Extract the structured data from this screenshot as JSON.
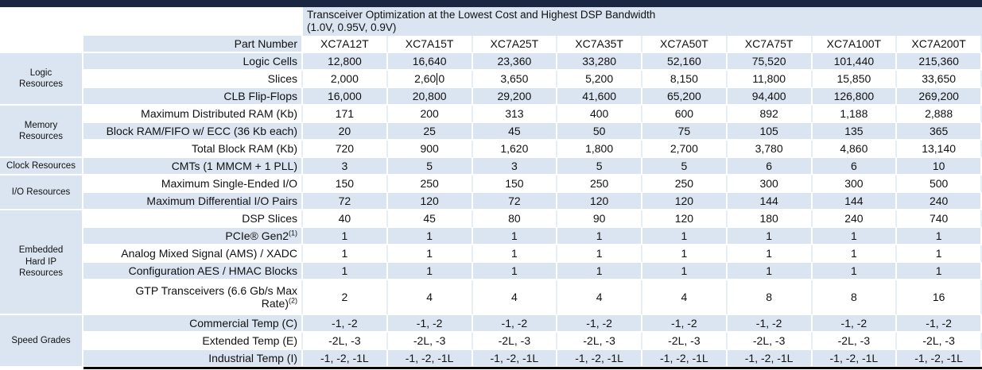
{
  "colors": {
    "top_bar": "#1b2642",
    "row_blue": "#dbe5f1",
    "white_row_divider": "#e7edf5",
    "bottom_rule": "#000000"
  },
  "title": {
    "line1": "Transceiver Optimization at the Lowest Cost and Highest DSP Bandwidth",
    "line2": "(1.0V, 0.95V, 0.9V)"
  },
  "table": {
    "header": {
      "label": "Part Number",
      "parts": [
        "XC7A12T",
        "XC7A15T",
        "XC7A25T",
        "XC7A35T",
        "XC7A50T",
        "XC7A75T",
        "XC7A100T",
        "XC7A200T"
      ]
    },
    "groups": [
      {
        "label": "Logic Resources",
        "lines": [
          "Logic",
          "Resources"
        ],
        "rows": [
          {
            "label": "Logic Cells",
            "sup": "",
            "shade": "blue",
            "values": [
              "12,800",
              "16,640",
              "23,360",
              "33,280",
              "52,160",
              "75,520",
              "101,440",
              "215,360"
            ]
          },
          {
            "label": "Slices",
            "sup": "",
            "shade": "white",
            "values": [
              "2,000",
              "2,600",
              "3,650",
              "5,200",
              "8,150",
              "11,800",
              "15,850",
              "33,650"
            ],
            "caret": {
              "col": 1,
              "before": "2,60",
              "after": "0"
            }
          },
          {
            "label": "CLB Flip-Flops",
            "sup": "",
            "shade": "blue",
            "values": [
              "16,000",
              "20,800",
              "29,200",
              "41,600",
              "65,200",
              "94,400",
              "126,800",
              "269,200"
            ]
          }
        ]
      },
      {
        "label": "Memory Resources",
        "lines": [
          "Memory",
          "Resources"
        ],
        "rows": [
          {
            "label": "Maximum Distributed RAM (Kb)",
            "sup": "",
            "shade": "white",
            "values": [
              "171",
              "200",
              "313",
              "400",
              "600",
              "892",
              "1,188",
              "2,888"
            ]
          },
          {
            "label": "Block RAM/FIFO w/ ECC (36 Kb each)",
            "sup": "",
            "shade": "blue",
            "values": [
              "20",
              "25",
              "45",
              "50",
              "75",
              "105",
              "135",
              "365"
            ]
          },
          {
            "label": "Total Block RAM (Kb)",
            "sup": "",
            "shade": "white",
            "values": [
              "720",
              "900",
              "1,620",
              "1,800",
              "2,700",
              "3,780",
              "4,860",
              "13,140"
            ]
          }
        ]
      },
      {
        "label": "Clock Resources",
        "lines": [
          "Clock Resources"
        ],
        "rows": [
          {
            "label": "CMTs (1 MMCM + 1 PLL)",
            "sup": "",
            "shade": "blue",
            "values": [
              "3",
              "5",
              "3",
              "5",
              "5",
              "6",
              "6",
              "10"
            ]
          }
        ]
      },
      {
        "label": "I/O Resources",
        "lines": [
          "I/O Resources"
        ],
        "rows": [
          {
            "label": "Maximum Single-Ended I/O",
            "sup": "",
            "shade": "white",
            "values": [
              "150",
              "250",
              "150",
              "250",
              "250",
              "300",
              "300",
              "500"
            ]
          },
          {
            "label": "Maximum Differential I/O Pairs",
            "sup": "",
            "shade": "blue",
            "values": [
              "72",
              "120",
              "72",
              "120",
              "120",
              "144",
              "144",
              "240"
            ]
          }
        ]
      },
      {
        "label": "Embedded Hard IP Resources",
        "lines": [
          "Embedded",
          "Hard IP",
          "Resources"
        ],
        "rows": [
          {
            "label": "DSP Slices",
            "sup": "",
            "shade": "white",
            "values": [
              "40",
              "45",
              "80",
              "90",
              "120",
              "180",
              "240",
              "740"
            ]
          },
          {
            "label": "PCIe® Gen2",
            "sup": "(1)",
            "shade": "blue",
            "values": [
              "1",
              "1",
              "1",
              "1",
              "1",
              "1",
              "1",
              "1"
            ]
          },
          {
            "label": "Analog Mixed Signal (AMS) / XADC",
            "sup": "",
            "shade": "white",
            "values": [
              "1",
              "1",
              "1",
              "1",
              "1",
              "1",
              "1",
              "1"
            ]
          },
          {
            "label": "Configuration AES / HMAC Blocks",
            "sup": "",
            "shade": "blue",
            "values": [
              "1",
              "1",
              "1",
              "1",
              "1",
              "1",
              "1",
              "1"
            ]
          },
          {
            "label": "GTP Transceivers (6.6 Gb/s Max Rate)",
            "sup": "(2)",
            "shade": "white",
            "tall": true,
            "values": [
              "2",
              "4",
              "4",
              "4",
              "4",
              "8",
              "8",
              "16"
            ]
          }
        ]
      },
      {
        "label": "Speed Grades",
        "lines": [
          "Speed Grades"
        ],
        "rows": [
          {
            "label": "Commercial Temp (C)",
            "sup": "",
            "shade": "blue",
            "values": [
              "-1, -2",
              "-1, -2",
              "-1, -2",
              "-1, -2",
              "-1, -2",
              "-1, -2",
              "-1, -2",
              "-1, -2"
            ]
          },
          {
            "label": "Extended Temp (E)",
            "sup": "",
            "shade": "white",
            "values": [
              "-2L, -3",
              "-2L, -3",
              "-2L, -3",
              "-2L, -3",
              "-2L, -3",
              "-2L, -3",
              "-2L, -3",
              "-2L, -3"
            ]
          },
          {
            "label": "Industrial Temp (I)",
            "sup": "",
            "shade": "blue",
            "values": [
              "-1, -2, -1L",
              "-1, -2, -1L",
              "-1, -2, -1L",
              "-1, -2, -1L",
              "-1, -2, -1L",
              "-1, -2, -1L",
              "-1, -2, -1L",
              "-1, -2, -1L"
            ]
          }
        ]
      }
    ]
  }
}
